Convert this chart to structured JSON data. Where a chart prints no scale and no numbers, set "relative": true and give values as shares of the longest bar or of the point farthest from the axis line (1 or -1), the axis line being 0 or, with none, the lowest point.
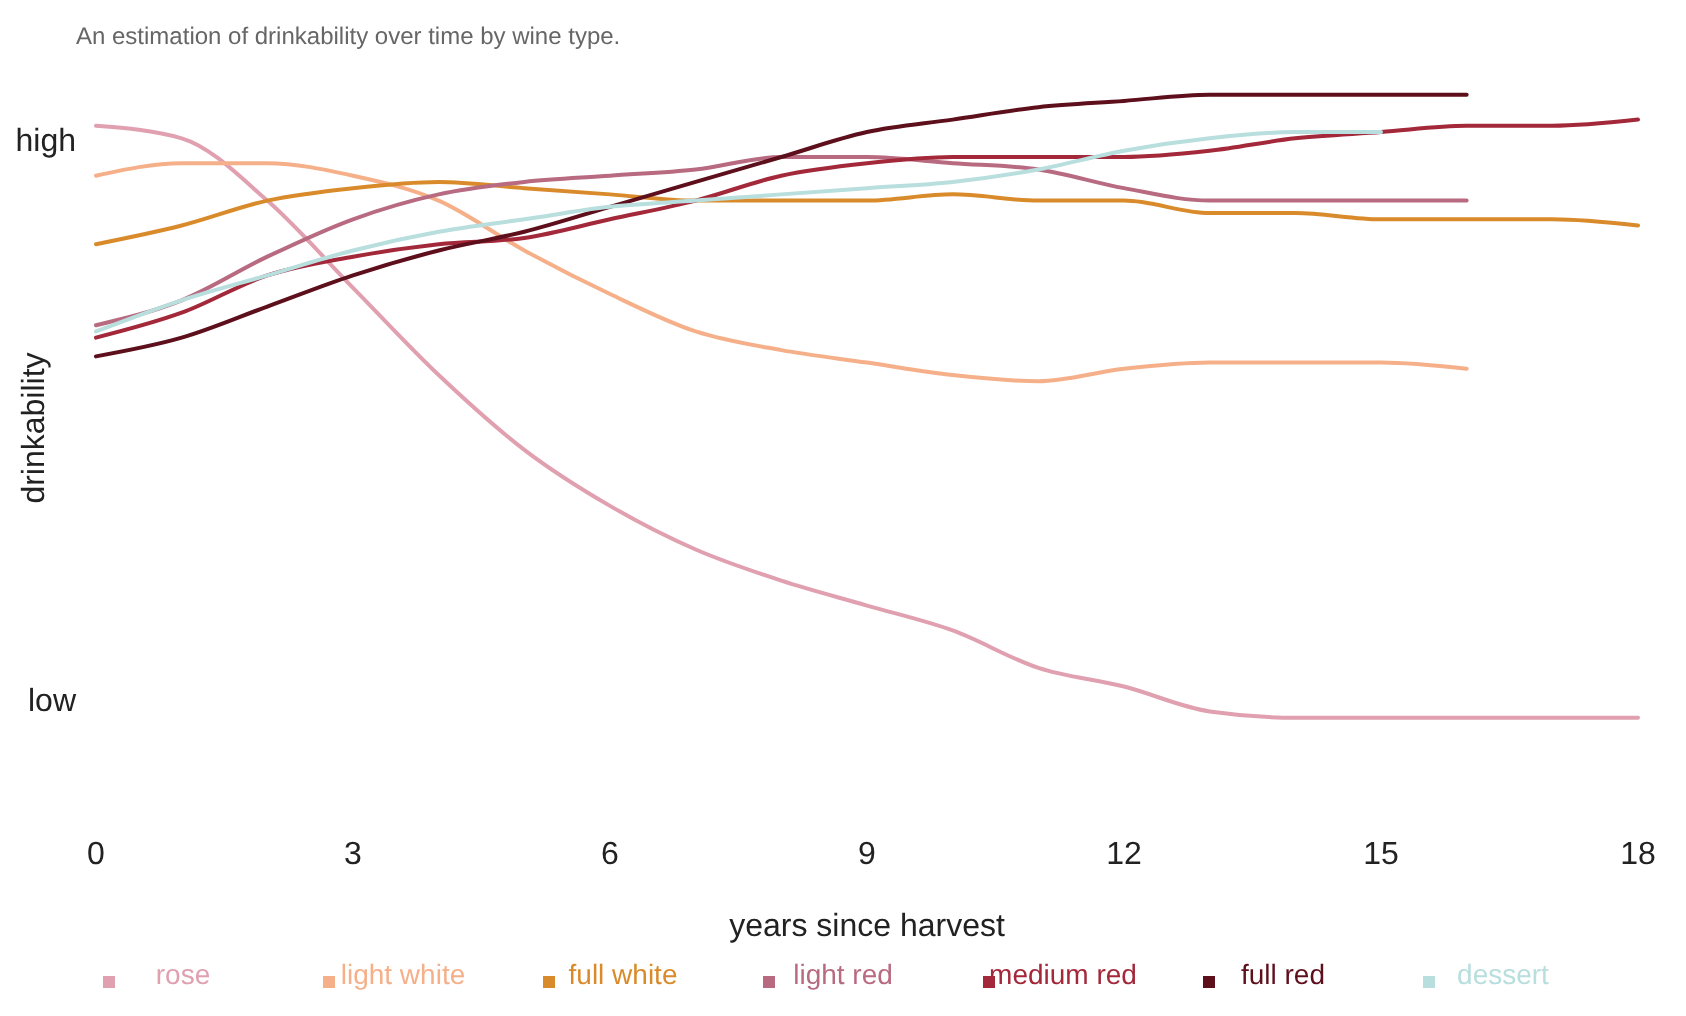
{
  "chart_data": {
    "type": "line",
    "title": "An estimation of drinkability over time by wine type.",
    "xlabel": "years since harvest",
    "ylabel": "drinkability",
    "xlim": [
      0,
      18
    ],
    "xticks": [
      0,
      3,
      6,
      9,
      12,
      15,
      18
    ],
    "relative": true,
    "annotations": [
      "high",
      "low"
    ],
    "grid": false,
    "legend": "bottom",
    "marker": "none",
    "line_style": "solid",
    "series": [
      {
        "name": "rose",
        "color": "#e0a0b0",
        "x": [
          0,
          1,
          2,
          3,
          4,
          5,
          6,
          7,
          8,
          9,
          10,
          11,
          12,
          13,
          14,
          15,
          16,
          17,
          18
        ],
        "values": [
          0.95,
          0.93,
          0.83,
          0.69,
          0.55,
          0.43,
          0.34,
          0.27,
          0.22,
          0.18,
          0.14,
          0.08,
          0.05,
          0.01,
          0,
          0,
          0,
          0,
          0
        ]
      },
      {
        "name": "light white",
        "color": "#f5b08a",
        "x": [
          0,
          1,
          2,
          3,
          4,
          5,
          6,
          7,
          8,
          9,
          10,
          11,
          12,
          13,
          14,
          15,
          16
        ],
        "values": [
          0.87,
          0.89,
          0.89,
          0.87,
          0.83,
          0.75,
          0.68,
          0.62,
          0.59,
          0.57,
          0.55,
          0.54,
          0.56,
          0.57,
          0.57,
          0.57,
          0.56
        ]
      },
      {
        "name": "full white",
        "color": "#d98b2b",
        "x": [
          0,
          1,
          2,
          3,
          4,
          5,
          6,
          7,
          8,
          9,
          10,
          11,
          12,
          13,
          14,
          15,
          16,
          17,
          18
        ],
        "values": [
          0.76,
          0.79,
          0.83,
          0.85,
          0.86,
          0.85,
          0.84,
          0.83,
          0.83,
          0.83,
          0.84,
          0.83,
          0.83,
          0.81,
          0.81,
          0.8,
          0.8,
          0.8,
          0.79
        ]
      },
      {
        "name": "light red",
        "color": "#b86a80",
        "x": [
          0,
          1,
          2,
          3,
          4,
          5,
          6,
          7,
          8,
          9,
          10,
          11,
          12,
          13,
          14,
          15,
          16
        ],
        "values": [
          0.63,
          0.67,
          0.74,
          0.8,
          0.84,
          0.86,
          0.87,
          0.88,
          0.9,
          0.9,
          0.89,
          0.88,
          0.85,
          0.83,
          0.83,
          0.83,
          0.83
        ]
      },
      {
        "name": "medium red",
        "color": "#a3283a",
        "x": [
          0,
          1,
          2,
          3,
          4,
          5,
          6,
          7,
          8,
          9,
          10,
          11,
          12,
          13,
          14,
          15,
          16,
          17,
          18
        ],
        "values": [
          0.61,
          0.65,
          0.71,
          0.74,
          0.76,
          0.77,
          0.8,
          0.83,
          0.87,
          0.89,
          0.9,
          0.9,
          0.9,
          0.91,
          0.93,
          0.94,
          0.95,
          0.95,
          0.96
        ]
      },
      {
        "name": "full red",
        "color": "#5e0f1c",
        "x": [
          0,
          1,
          2,
          3,
          4,
          5,
          6,
          7,
          8,
          9,
          10,
          11,
          12,
          13,
          14,
          15,
          16
        ],
        "values": [
          0.58,
          0.61,
          0.66,
          0.71,
          0.75,
          0.78,
          0.82,
          0.86,
          0.9,
          0.94,
          0.96,
          0.98,
          0.99,
          1,
          1,
          1,
          1
        ]
      },
      {
        "name": "dessert",
        "color": "#b8dede",
        "x": [
          0,
          1,
          2,
          3,
          4,
          5,
          6,
          7,
          8,
          9,
          10,
          11,
          12,
          13,
          14,
          15
        ],
        "values": [
          0.62,
          0.67,
          0.71,
          0.75,
          0.78,
          0.8,
          0.82,
          0.83,
          0.84,
          0.85,
          0.86,
          0.88,
          0.91,
          0.93,
          0.94,
          0.94
        ]
      }
    ]
  }
}
